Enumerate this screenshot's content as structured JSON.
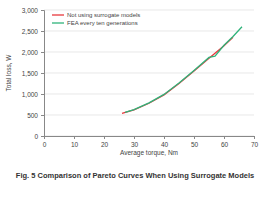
{
  "chart_data": {
    "type": "line",
    "title": "Fig. 5 Comparison of Pareto Curves When Using Surrogate Models",
    "x_label": "Average torque, Nm",
    "y_label": "Total loss, W",
    "xlim": [
      0,
      70
    ],
    "xticks": [
      0,
      10,
      20,
      30,
      40,
      50,
      60,
      70
    ],
    "ylim": [
      0,
      3000
    ],
    "yticks": [
      0,
      500,
      {
        "value": 1000,
        "label": "1,000"
      },
      {
        "value": 1500,
        "label": "1,500"
      },
      {
        "value": 2000,
        "label": "2,000"
      },
      {
        "value": 2500,
        "label": "2,500"
      },
      {
        "value": 3000,
        "label": "3,000"
      }
    ],
    "grid": true,
    "legend": "upper left",
    "series": [
      {
        "name": "Not using surrogate models",
        "color": "#e8383d",
        "x": [
          26,
          30,
          35,
          40,
          45,
          50,
          55,
          60,
          63
        ],
        "values": [
          540,
          620,
          780,
          980,
          1250,
          1550,
          1850,
          2150,
          2350
        ]
      },
      {
        "name": "FEA every ten generations",
        "color": "#2fb37a",
        "x": [
          27,
          30,
          35,
          40,
          45,
          50,
          55,
          57,
          60,
          63,
          66
        ],
        "values": [
          560,
          630,
          790,
          990,
          1260,
          1560,
          1870,
          1900,
          2160,
          2370,
          2600
        ]
      }
    ]
  }
}
